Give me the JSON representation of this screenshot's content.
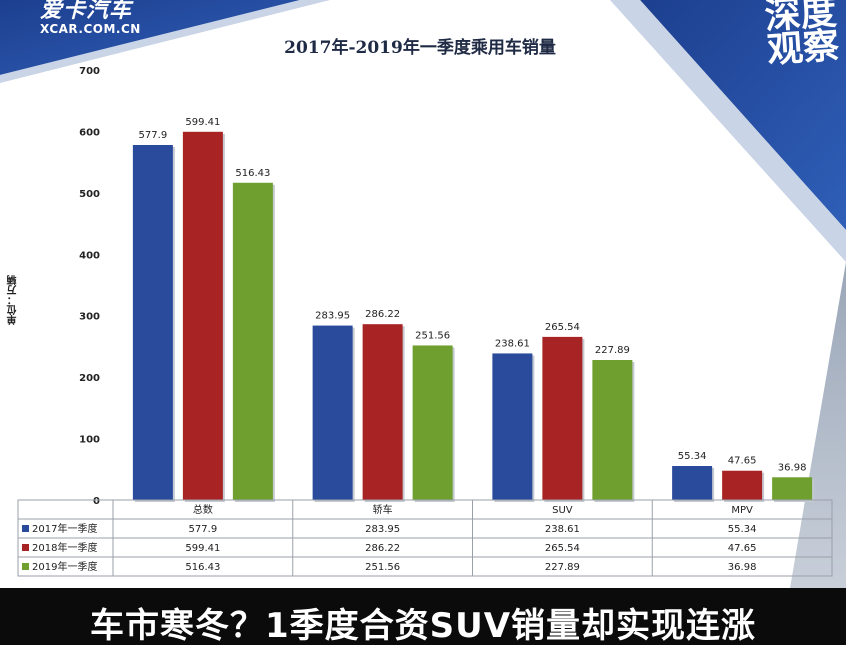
{
  "logo_left": {
    "cn": "爱卡汽车",
    "en": "XCAR.COM.CN"
  },
  "logo_right": {
    "line1": "深度",
    "line2": "观察"
  },
  "banner": "车市寒冬？1季度合资SUV销量却实现连涨",
  "colors": {
    "s2017": "#2a4b9c",
    "s2018": "#a82424",
    "s2019": "#6f9f2e"
  },
  "chart_data": {
    "type": "bar",
    "title": "2017年-2019年一季度乘用车销量",
    "ylabel": "单位：万辆",
    "xlabel": "",
    "ylim": [
      0,
      700
    ],
    "yticks": [
      0,
      100,
      200,
      300,
      400,
      500,
      600,
      700
    ],
    "categories": [
      "总数",
      "轿车",
      "SUV",
      "MPV"
    ],
    "grid": false,
    "legend": "table-below",
    "series": [
      {
        "name": "2017年一季度",
        "values": [
          577.9,
          283.95,
          238.61,
          55.34
        ],
        "labels": [
          "577.9",
          "283.95",
          "238.61",
          "55.34"
        ]
      },
      {
        "name": "2018年一季度",
        "values": [
          599.41,
          286.22,
          265.54,
          47.65
        ],
        "labels": [
          "599.41",
          "286.22",
          "265.54",
          "47.65"
        ]
      },
      {
        "name": "2019年一季度",
        "values": [
          516.43,
          251.56,
          227.89,
          36.98
        ],
        "labels": [
          "516.43",
          "251.56",
          "227.89",
          "36.98"
        ]
      }
    ]
  }
}
